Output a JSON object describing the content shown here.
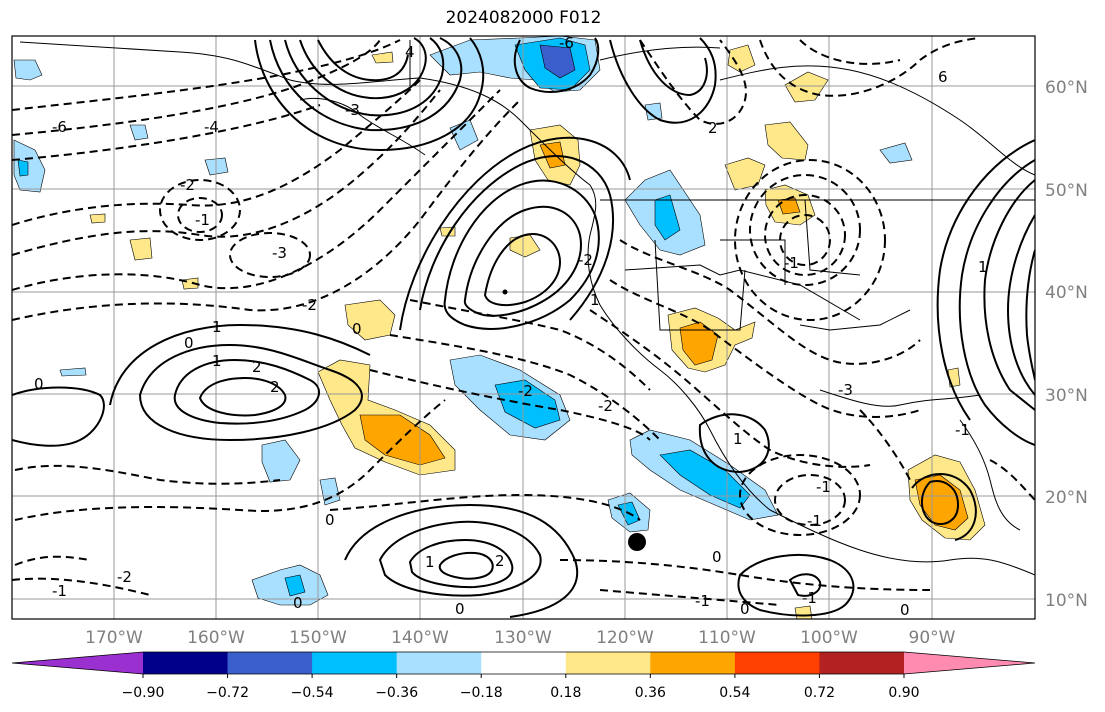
{
  "title": "2024082000 F012",
  "lat_labels": [
    "60°N",
    "50°N",
    "40°N",
    "30°N",
    "20°N",
    "10°N"
  ],
  "lon_labels": [
    "170°W",
    "160°W",
    "150°W",
    "140°W",
    "130°W",
    "120°W",
    "110°W",
    "100°W",
    "90°W"
  ],
  "colorbar": {
    "colors": [
      "#9b30d0",
      "#00008b",
      "#3a5fcd",
      "#00bfff",
      "#aae0ff",
      "#ffffff",
      "#ffe88a",
      "#ffa500",
      "#ff4000",
      "#b22222",
      "#ff8cb0"
    ],
    "tick_labels": [
      "−0.90",
      "−0.72",
      "−0.54",
      "−0.36",
      "−0.18",
      "0.18",
      "0.36",
      "0.54",
      "0.72",
      "0.90"
    ]
  },
  "contour_labels": [
    "4",
    "6",
    "-3",
    "-6",
    "-4",
    "-2",
    "-1",
    "-3",
    "-2",
    "0",
    "1",
    "2",
    "0",
    "1",
    "-2",
    "0",
    "2",
    "-2",
    "1",
    "-1",
    "-1",
    "0",
    "0",
    "1",
    "2",
    "-2",
    "-1",
    "0",
    "-1",
    "0",
    "0",
    "-1",
    "0",
    "-6",
    "2",
    "1",
    "-3",
    "-1",
    "-1",
    "-2",
    "1"
  ],
  "marker": "storm-center-dot"
}
